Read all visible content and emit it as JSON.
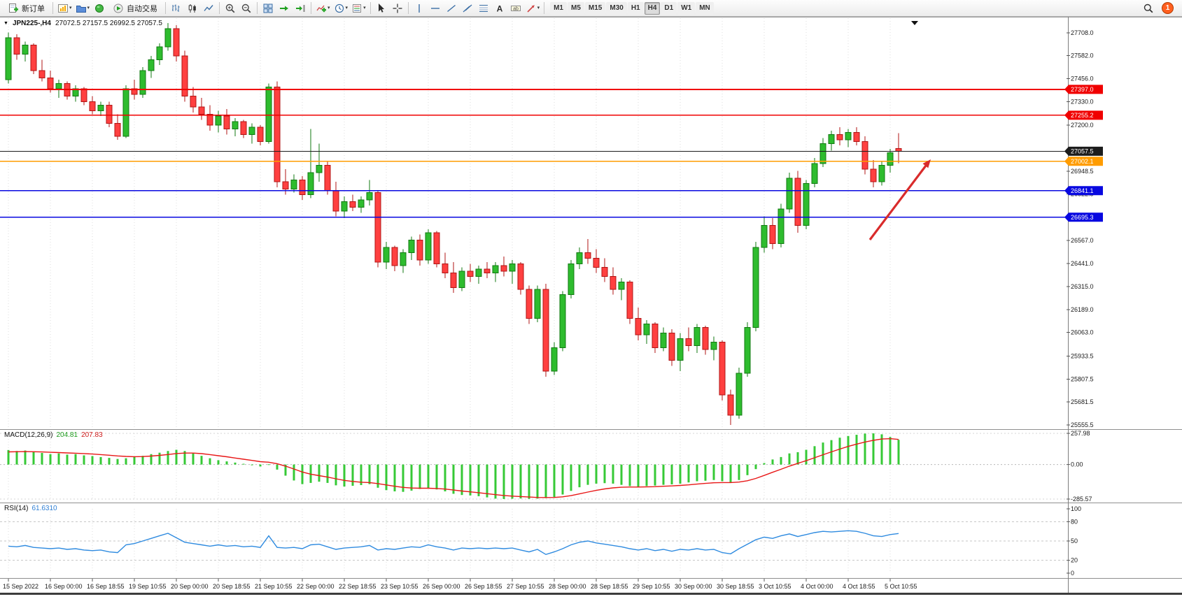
{
  "toolbar": {
    "new_order_label": "新订单",
    "autotrading_label": "自动交易",
    "timeframes": [
      "M1",
      "M5",
      "M15",
      "M30",
      "H1",
      "H4",
      "D1",
      "W1",
      "MN"
    ],
    "active_timeframe": "H4",
    "notification_count": "1"
  },
  "chart": {
    "title_symbol_period": "JPN225-,H4",
    "title_ohlc": "27072.5 27157.5 26992.5 27057.5",
    "levels": [
      {
        "label": "27397.0",
        "price": 27397.0,
        "color": "#f00000",
        "kind": "resistance"
      },
      {
        "label": "27255.2",
        "price": 27255.2,
        "color": "#f00000",
        "kind": "resistance"
      },
      {
        "label": "27057.5",
        "price": 27057.5,
        "color": "#1c1c1c",
        "kind": "current-price"
      },
      {
        "label": "27002.1",
        "price": 27002.1,
        "color": "#ff9c00",
        "kind": "pivot"
      },
      {
        "label": "26841.1",
        "price": 26841.1,
        "color": "#0808e0",
        "kind": "support"
      },
      {
        "label": "26695.3",
        "price": 26695.3,
        "color": "#0808e0",
        "kind": "support"
      }
    ],
    "price_ticks": [
      {
        "price": 27708.0,
        "label": "27708.0"
      },
      {
        "price": 27582.0,
        "label": "27582.0"
      },
      {
        "price": 27456.0,
        "label": "27456.0"
      },
      {
        "price": 27330.0,
        "label": "27330.0"
      },
      {
        "price": 27200.0,
        "label": "27200.0"
      },
      {
        "price": 26948.5,
        "label": "26948.5"
      },
      {
        "price": 26822.5,
        "label": "26822.5"
      },
      {
        "price": 26567.0,
        "label": "26567.0"
      },
      {
        "price": 26441.0,
        "label": "26441.0"
      },
      {
        "price": 26315.0,
        "label": "26315.0"
      },
      {
        "price": 26189.0,
        "label": "26189.0"
      },
      {
        "price": 26063.0,
        "label": "26063.0"
      },
      {
        "price": 25933.5,
        "label": "25933.5"
      },
      {
        "price": 25807.5,
        "label": "25807.5"
      },
      {
        "price": 25681.5,
        "label": "25681.5"
      },
      {
        "price": 25555.5,
        "label": "25555.5"
      }
    ],
    "colors": {
      "bull": "#2ebc2e",
      "bull_edge": "#117a11",
      "bear": "#ff4040",
      "bear_edge": "#b01414",
      "macd_hist": "#36c936",
      "macd_signal": "#e81717",
      "rsi": "#2f8be0",
      "grid": "#dcdcdc"
    }
  },
  "chart_data": {
    "type": "candlestick",
    "symbol": "JPN225-",
    "timeframe": "H4",
    "price_axis_range": [
      25540,
      27780
    ],
    "time_labels": [
      "15 Sep 2022",
      "16 Sep 00:00",
      "16 Sep 18:55",
      "19 Sep 10:55",
      "20 Sep 00:00",
      "20 Sep 18:55",
      "21 Sep 10:55",
      "22 Sep 00:00",
      "22 Sep 18:55",
      "23 Sep 10:55",
      "26 Sep 00:00",
      "26 Sep 18:55",
      "27 Sep 10:55",
      "28 Sep 00:00",
      "28 Sep 18:55",
      "29 Sep 10:55",
      "30 Sep 00:00",
      "30 Sep 18:55",
      "3 Oct 10:55",
      "4 Oct 00:00",
      "4 Oct 18:55",
      "5 Oct 10:55"
    ],
    "candles_ohlc": [
      [
        27450,
        27710,
        27430,
        27680
      ],
      [
        27680,
        27700,
        27560,
        27590
      ],
      [
        27590,
        27660,
        27550,
        27640
      ],
      [
        27640,
        27650,
        27480,
        27500
      ],
      [
        27500,
        27560,
        27440,
        27460
      ],
      [
        27460,
        27500,
        27380,
        27400
      ],
      [
        27400,
        27450,
        27350,
        27430
      ],
      [
        27430,
        27440,
        27340,
        27360
      ],
      [
        27360,
        27420,
        27330,
        27400
      ],
      [
        27400,
        27410,
        27310,
        27330
      ],
      [
        27330,
        27360,
        27260,
        27280
      ],
      [
        27280,
        27330,
        27250,
        27310
      ],
      [
        27310,
        27330,
        27190,
        27210
      ],
      [
        27210,
        27260,
        27120,
        27140
      ],
      [
        27140,
        27420,
        27130,
        27400
      ],
      [
        27400,
        27450,
        27340,
        27370
      ],
      [
        27370,
        27520,
        27350,
        27500
      ],
      [
        27500,
        27580,
        27460,
        27560
      ],
      [
        27560,
        27650,
        27530,
        27630
      ],
      [
        27630,
        27760,
        27610,
        27730
      ],
      [
        27730,
        27750,
        27550,
        27580
      ],
      [
        27580,
        27610,
        27330,
        27360
      ],
      [
        27360,
        27410,
        27270,
        27300
      ],
      [
        27300,
        27350,
        27230,
        27260
      ],
      [
        27260,
        27310,
        27170,
        27200
      ],
      [
        27200,
        27280,
        27160,
        27250
      ],
      [
        27250,
        27290,
        27150,
        27180
      ],
      [
        27180,
        27240,
        27140,
        27220
      ],
      [
        27220,
        27230,
        27130,
        27150
      ],
      [
        27150,
        27210,
        27100,
        27190
      ],
      [
        27190,
        27200,
        27090,
        27110
      ],
      [
        27110,
        27430,
        27100,
        27410
      ],
      [
        27410,
        27440,
        26860,
        26890
      ],
      [
        26890,
        26960,
        26820,
        26850
      ],
      [
        26850,
        26930,
        26830,
        26900
      ],
      [
        26900,
        26920,
        26790,
        26820
      ],
      [
        26820,
        27180,
        26800,
        26940
      ],
      [
        26940,
        27100,
        26890,
        26980
      ],
      [
        26980,
        27000,
        26820,
        26840
      ],
      [
        26840,
        26890,
        26700,
        26730
      ],
      [
        26730,
        26810,
        26690,
        26780
      ],
      [
        26780,
        26820,
        26730,
        26750
      ],
      [
        26750,
        26810,
        26720,
        26790
      ],
      [
        26790,
        26900,
        26760,
        26830
      ],
      [
        26830,
        26840,
        26420,
        26450
      ],
      [
        26450,
        26560,
        26410,
        26530
      ],
      [
        26530,
        26540,
        26400,
        26430
      ],
      [
        26430,
        26520,
        26390,
        26500
      ],
      [
        26500,
        26590,
        26460,
        26570
      ],
      [
        26570,
        26600,
        26430,
        26460
      ],
      [
        26460,
        26630,
        26440,
        26610
      ],
      [
        26610,
        26620,
        26420,
        26440
      ],
      [
        26440,
        26500,
        26360,
        26390
      ],
      [
        26390,
        26450,
        26280,
        26310
      ],
      [
        26310,
        26420,
        26290,
        26400
      ],
      [
        26400,
        26440,
        26340,
        26370
      ],
      [
        26370,
        26430,
        26330,
        26410
      ],
      [
        26410,
        26450,
        26360,
        26390
      ],
      [
        26390,
        26450,
        26340,
        26430
      ],
      [
        26430,
        26480,
        26370,
        26400
      ],
      [
        26400,
        26460,
        26330,
        26440
      ],
      [
        26440,
        26450,
        26270,
        26300
      ],
      [
        26300,
        26320,
        26110,
        26140
      ],
      [
        26140,
        26320,
        26120,
        26300
      ],
      [
        26300,
        26330,
        25820,
        25850
      ],
      [
        25850,
        26010,
        25830,
        25980
      ],
      [
        25980,
        26290,
        25960,
        26270
      ],
      [
        26270,
        26460,
        26250,
        26440
      ],
      [
        26440,
        26530,
        26410,
        26500
      ],
      [
        26500,
        26575,
        26440,
        26470
      ],
      [
        26470,
        26520,
        26390,
        26420
      ],
      [
        26420,
        26470,
        26340,
        26370
      ],
      [
        26370,
        26420,
        26270,
        26300
      ],
      [
        26300,
        26360,
        26240,
        26340
      ],
      [
        26340,
        26350,
        26110,
        26140
      ],
      [
        26140,
        26200,
        26020,
        26050
      ],
      [
        26050,
        26130,
        26000,
        26110
      ],
      [
        26110,
        26120,
        25950,
        25980
      ],
      [
        25980,
        26090,
        25960,
        26060
      ],
      [
        26060,
        26080,
        25880,
        25910
      ],
      [
        25910,
        26060,
        25850,
        26030
      ],
      [
        26030,
        26090,
        25960,
        25990
      ],
      [
        25990,
        26110,
        25950,
        26090
      ],
      [
        26090,
        26100,
        25940,
        25970
      ],
      [
        25970,
        26040,
        25910,
        26010
      ],
      [
        26010,
        26020,
        25690,
        25720
      ],
      [
        25720,
        25750,
        25556,
        25610
      ],
      [
        25610,
        25870,
        25590,
        25840
      ],
      [
        25840,
        26120,
        25820,
        26090
      ],
      [
        26090,
        26560,
        26070,
        26530
      ],
      [
        26530,
        26700,
        26500,
        26650
      ],
      [
        26650,
        26690,
        26520,
        26550
      ],
      [
        26550,
        26770,
        26530,
        26740
      ],
      [
        26740,
        26940,
        26720,
        26910
      ],
      [
        26910,
        26950,
        26610,
        26650
      ],
      [
        26650,
        26900,
        26630,
        26880
      ],
      [
        26880,
        27020,
        26860,
        26990
      ],
      [
        26990,
        27130,
        26970,
        27100
      ],
      [
        27100,
        27170,
        27060,
        27150
      ],
      [
        27150,
        27190,
        27090,
        27120
      ],
      [
        27120,
        27180,
        27080,
        27160
      ],
      [
        27160,
        27190,
        27090,
        27110
      ],
      [
        27110,
        27140,
        26930,
        26960
      ],
      [
        26960,
        27010,
        26860,
        26890
      ],
      [
        26890,
        27000,
        26870,
        26980
      ],
      [
        26980,
        27070,
        26940,
        27050
      ],
      [
        27072.5,
        27157.5,
        26992.5,
        27057.5
      ]
    ],
    "indicators": {
      "macd": {
        "label": "MACD(12,26,9)",
        "value_main": "204.81",
        "value_signal": "207.83",
        "scale_max": 257.98,
        "scale_min": -285.57,
        "scale_max_label": "257.98",
        "scale_zero_label": "0.00",
        "scale_min_label": "-285.57",
        "histogram": [
          120,
          112,
          116,
          102,
          96,
          86,
          92,
          82,
          86,
          76,
          70,
          62,
          55,
          46,
          52,
          62,
          72,
          86,
          98,
          112,
          122,
          112,
          92,
          72,
          52,
          36,
          26,
          16,
          6,
          -6,
          -16,
          2,
          -42,
          -92,
          -132,
          -162,
          -152,
          -142,
          -152,
          -172,
          -182,
          -176,
          -170,
          -162,
          -192,
          -212,
          -222,
          -226,
          -216,
          -202,
          -196,
          -206,
          -222,
          -242,
          -252,
          -256,
          -262,
          -272,
          -282,
          -285,
          -283,
          -281,
          -284,
          -282,
          -278,
          -268,
          -248,
          -218,
          -188,
          -168,
          -158,
          -154,
          -158,
          -168,
          -178,
          -184,
          -178,
          -174,
          -168,
          -164,
          -158,
          -148,
          -138,
          -134,
          -128,
          -138,
          -148,
          -128,
          -88,
          -38,
          12,
          42,
          62,
          92,
          102,
          122,
          152,
          182,
          202,
          222,
          236,
          246,
          256,
          258,
          250,
          228,
          204.81
        ],
        "signal": [
          105,
          106,
          107,
          106,
          104,
          101,
          99,
          96,
          94,
          91,
          87,
          82,
          77,
          71,
          67,
          65,
          66,
          70,
          76,
          83,
          91,
          95,
          95,
          90,
          82,
          73,
          64,
          54,
          44,
          34,
          24,
          19,
          7,
          -13,
          -37,
          -62,
          -80,
          -92,
          -104,
          -118,
          -131,
          -140,
          -146,
          -149,
          -158,
          -169,
          -180,
          -189,
          -194,
          -196,
          -196,
          -198,
          -203,
          -211,
          -219,
          -226,
          -233,
          -241,
          -249,
          -256,
          -261,
          -265,
          -269,
          -272,
          -273,
          -272,
          -267,
          -257,
          -243,
          -228,
          -214,
          -202,
          -193,
          -188,
          -186,
          -186,
          -185,
          -183,
          -180,
          -177,
          -173,
          -168,
          -162,
          -156,
          -151,
          -149,
          -149,
          -145,
          -134,
          -115,
          -90,
          -64,
          -39,
          -13,
          10,
          32,
          56,
          81,
          105,
          128,
          150,
          169,
          186,
          200,
          211,
          214,
          207.83
        ]
      },
      "rsi": {
        "label": "RSI(14)",
        "value": "61.6310",
        "scale_labels": [
          {
            "value": 100,
            "label": "100"
          },
          {
            "value": 80,
            "label": "80"
          },
          {
            "value": 50,
            "label": "50"
          },
          {
            "value": 20,
            "label": "20"
          },
          {
            "value": 0,
            "label": "0"
          }
        ],
        "levels_dashed": [
          80,
          50,
          20
        ],
        "values": [
          42,
          41,
          43,
          40,
          39,
          38,
          39,
          37,
          38,
          36,
          35,
          36,
          33,
          32,
          44,
          46,
          50,
          54,
          58,
          62,
          55,
          48,
          46,
          44,
          42,
          44,
          42,
          43,
          41,
          42,
          40,
          58,
          40,
          39,
          40,
          38,
          44,
          45,
          41,
          37,
          39,
          40,
          41,
          43,
          36,
          38,
          37,
          39,
          41,
          40,
          44,
          41,
          39,
          36,
          39,
          38,
          39,
          38,
          39,
          38,
          39,
          36,
          33,
          37,
          29,
          33,
          38,
          44,
          48,
          50,
          47,
          45,
          43,
          41,
          38,
          36,
          38,
          35,
          37,
          34,
          37,
          36,
          38,
          36,
          37,
          32,
          30,
          38,
          45,
          52,
          56,
          54,
          58,
          61,
          57,
          60,
          63,
          65,
          64,
          65,
          66,
          65,
          62,
          58,
          57,
          60,
          61.63
        ]
      }
    }
  },
  "annotation_arrow": {
    "description": "red upward trend arrow pointing toward orange level 27002.1",
    "color": "#d92b2b"
  }
}
